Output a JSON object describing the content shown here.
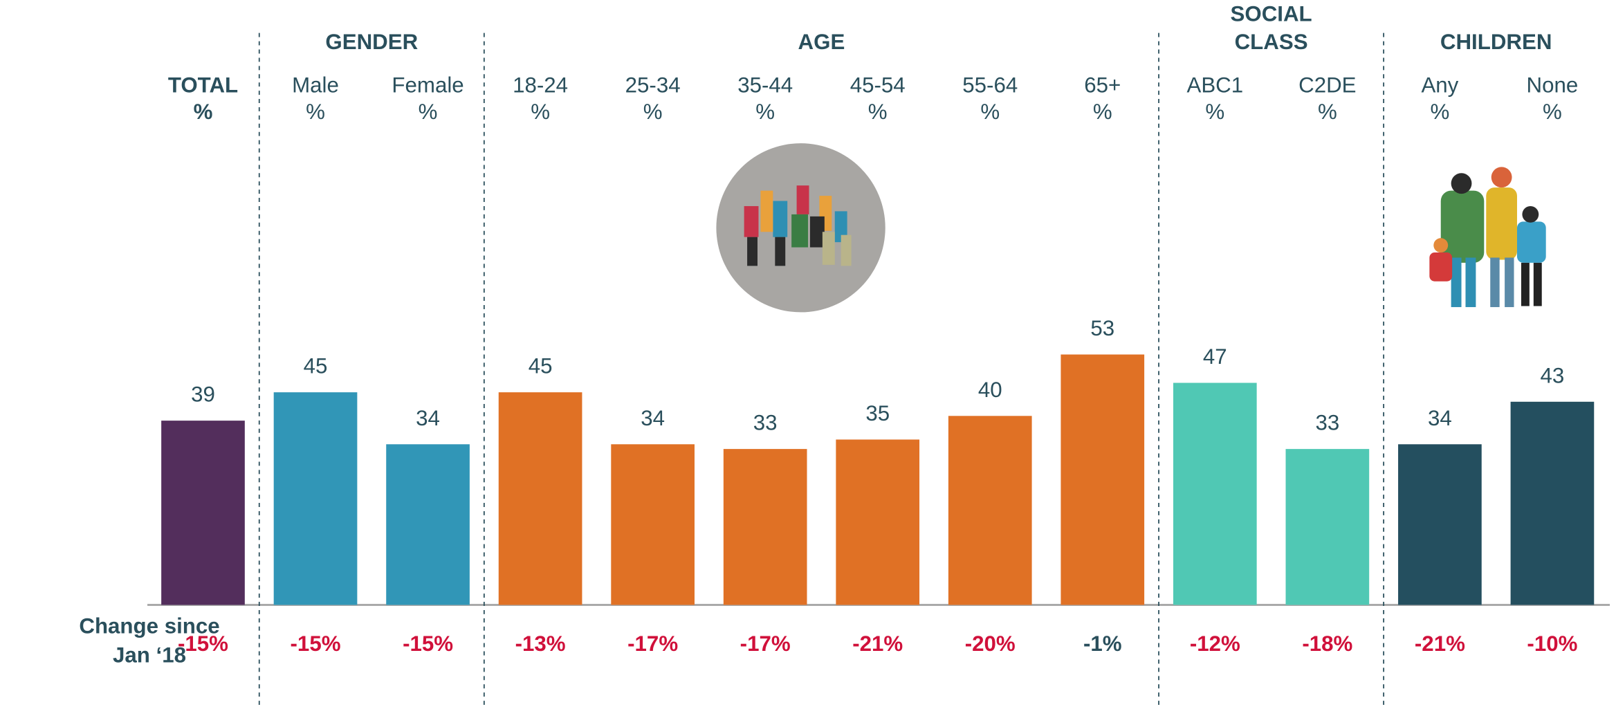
{
  "chart_data": {
    "type": "bar",
    "row_label": [
      "Change since",
      "Jan ‘18"
    ],
    "unit": "%",
    "groups": [
      {
        "categories": [
          "TOTAL"
        ],
        "values": [
          39
        ],
        "color": "#532e5c",
        "changes": [
          "-15%"
        ],
        "change_colors": [
          "#d0103a"
        ]
      },
      {
        "name": [
          "GENDER"
        ],
        "categories": [
          "Male",
          "Female"
        ],
        "values": [
          45,
          34
        ],
        "color": "#3196b7",
        "changes": [
          "-15%",
          "-15%"
        ],
        "change_colors": [
          "#d0103a",
          "#d0103a"
        ]
      },
      {
        "name": [
          "AGE"
        ],
        "categories": [
          "18-24",
          "25-34",
          "35-44",
          "45-54",
          "55-64",
          "65+"
        ],
        "values": [
          45,
          34,
          33,
          35,
          40,
          53
        ],
        "color": "#e07125",
        "changes": [
          "-13%",
          "-17%",
          "-17%",
          "-21%",
          "-20%",
          "-1%"
        ],
        "change_colors": [
          "#d0103a",
          "#d0103a",
          "#d0103a",
          "#d0103a",
          "#d0103a",
          "#2a4f5c"
        ]
      },
      {
        "name": [
          "SOCIAL",
          "CLASS"
        ],
        "categories": [
          "ABC1",
          "C2DE"
        ],
        "values": [
          47,
          33
        ],
        "color": "#50c8b4",
        "changes": [
          "-12%",
          "-18%"
        ],
        "change_colors": [
          "#d0103a",
          "#d0103a"
        ]
      },
      {
        "name": [
          "CHILDREN"
        ],
        "categories": [
          "Any",
          "None"
        ],
        "values": [
          34,
          43
        ],
        "color": "#244f5f",
        "changes": [
          "-21%",
          "-10%"
        ],
        "change_colors": [
          "#d0103a",
          "#d0103a"
        ]
      }
    ]
  }
}
